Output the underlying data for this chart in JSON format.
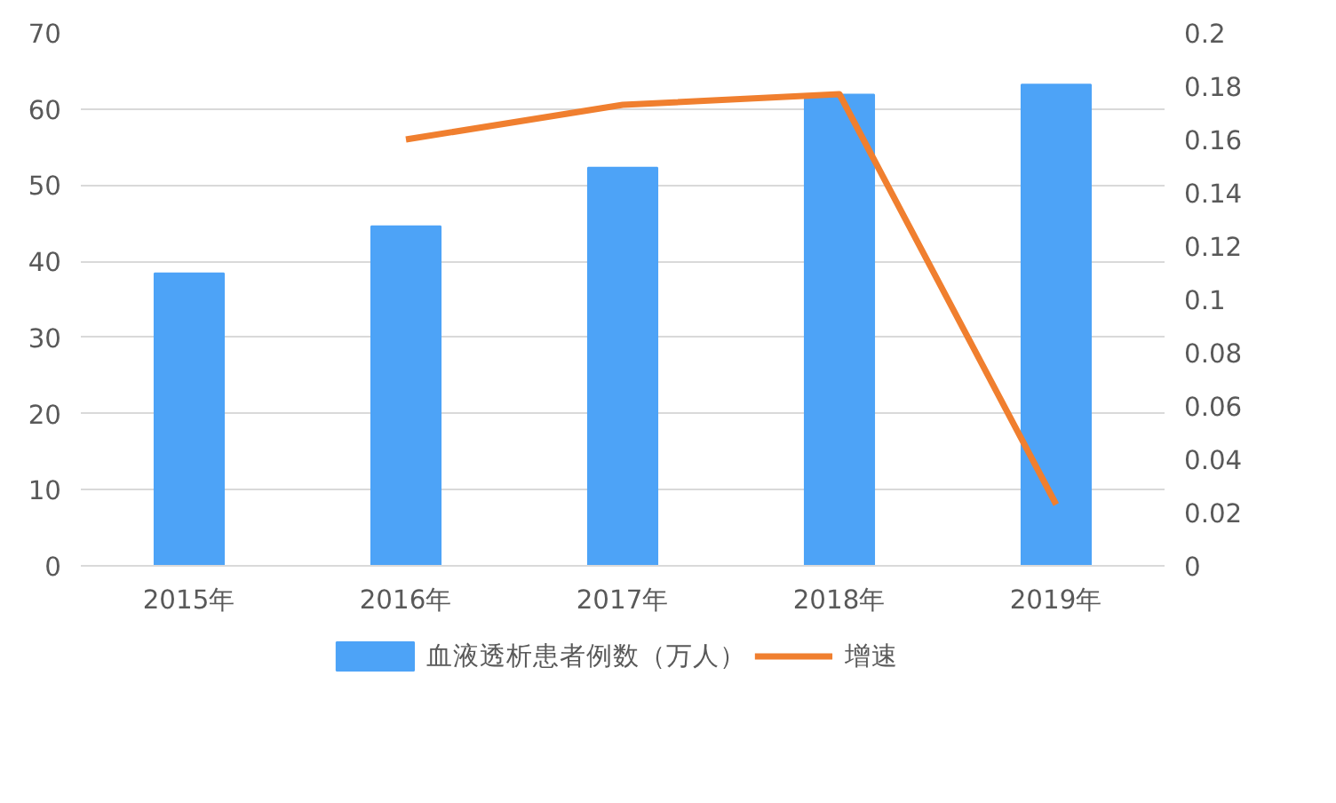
{
  "chart_data": {
    "type": "bar",
    "categories": [
      "2015年",
      "2016年",
      "2017年",
      "2018年",
      "2019年"
    ],
    "series": [
      {
        "name": "血液透析患者例数（万人）",
        "color": "#4da3f7",
        "values": [
          38.4,
          44.6,
          52.3,
          61.9,
          63.2
        ]
      },
      {
        "name": "增速",
        "type": "line",
        "axis": "y2",
        "color": "#f07f2f",
        "values": [
          null,
          0.16,
          0.173,
          0.177,
          0.023
        ]
      }
    ],
    "ylim": [
      0,
      70
    ],
    "yticks": [
      0,
      10,
      20,
      30,
      40,
      50,
      60,
      70
    ],
    "y2lim": [
      0,
      0.2
    ],
    "y2ticks": [
      0,
      0.02,
      0.04,
      0.06,
      0.08,
      0.1,
      0.12,
      0.14,
      0.16,
      0.18,
      0.2
    ],
    "grid": "y",
    "legend": "bottom",
    "line_style": "solid",
    "marker": "none"
  }
}
